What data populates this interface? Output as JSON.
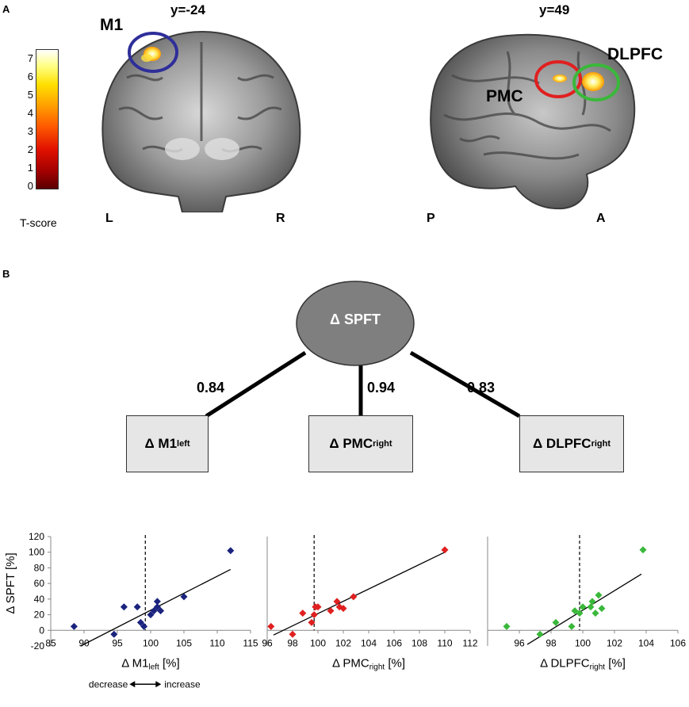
{
  "panel_a": {
    "letter": "A",
    "coronal": {
      "title": "y=-24",
      "left": "L",
      "right": "R",
      "roi": "M1",
      "roi_color": "#2e2e9a"
    },
    "sagittal": {
      "title": "y=49",
      "left": "P",
      "right": "A",
      "roi1": "PMC",
      "roi1_color": "#e02020",
      "roi2": "DLPFC",
      "roi2_color": "#3ab83a"
    },
    "colorbar": {
      "ticks": [
        "7",
        "6",
        "5",
        "4",
        "3",
        "2",
        "1",
        "0"
      ],
      "label": "T-score"
    }
  },
  "panel_b": {
    "letter": "B",
    "ellipse_label": "Δ SPFT",
    "boxes": [
      {
        "main": "Δ M1",
        "sub": "left"
      },
      {
        "main": "Δ PMC",
        "sub": "right"
      },
      {
        "main": "Δ DLPFC",
        "sub": "right"
      }
    ],
    "coefficients": [
      "0.84",
      "0.94",
      "0.83"
    ]
  },
  "chart_data": [
    {
      "type": "scatter",
      "ylabel": "Δ SPFT [%]",
      "xlabel_main": "Δ M1",
      "xlabel_sub": "left",
      "xlabel_unit": " [%]",
      "xlim": [
        85,
        115
      ],
      "ylim": [
        -20,
        120
      ],
      "xticks": [
        85,
        90,
        95,
        100,
        105,
        110,
        115
      ],
      "yticks": [
        -20,
        0,
        20,
        40,
        60,
        80,
        100,
        120
      ],
      "ref_x": 99.2,
      "color": "#1a237e",
      "points": [
        [
          88.5,
          5
        ],
        [
          94.5,
          -5
        ],
        [
          96,
          30
        ],
        [
          98,
          30
        ],
        [
          98.5,
          10
        ],
        [
          99,
          5
        ],
        [
          100,
          20
        ],
        [
          100.5,
          25
        ],
        [
          101,
          30
        ],
        [
          101,
          37
        ],
        [
          101.5,
          25
        ],
        [
          105,
          43
        ],
        [
          112,
          102
        ]
      ],
      "fit": [
        [
          89.5,
          -20
        ],
        [
          112,
          78
        ]
      ],
      "note_left": "decrease",
      "note_right": "increase"
    },
    {
      "type": "scatter",
      "ylabel": "",
      "xlabel_main": "Δ PMC",
      "xlabel_sub": "right",
      "xlabel_unit": " [%]",
      "xlim": [
        96,
        112
      ],
      "ylim": [
        -20,
        120
      ],
      "xticks": [
        96,
        98,
        100,
        102,
        104,
        106,
        108,
        110,
        112
      ],
      "yticks": [],
      "ref_x": 99.7,
      "color": "#e02020",
      "points": [
        [
          96.3,
          5
        ],
        [
          98,
          -5
        ],
        [
          98.8,
          22
        ],
        [
          99.5,
          10
        ],
        [
          99.7,
          20
        ],
        [
          99.8,
          30
        ],
        [
          100,
          30
        ],
        [
          101,
          25
        ],
        [
          101.5,
          37
        ],
        [
          101.7,
          30
        ],
        [
          102,
          28
        ],
        [
          102.8,
          43
        ],
        [
          110,
          103
        ]
      ],
      "fit": [
        [
          96.5,
          -6
        ],
        [
          110,
          100
        ]
      ]
    },
    {
      "type": "scatter",
      "ylabel": "",
      "xlabel_main": "Δ DLPFC",
      "xlabel_sub": "right",
      "xlabel_unit": " [%]",
      "xlim": [
        94,
        106
      ],
      "ylim": [
        -20,
        120
      ],
      "xticks": [
        96,
        98,
        100,
        102,
        104,
        106
      ],
      "yticks": [],
      "ref_x": 99.8,
      "color": "#3ab83a",
      "points": [
        [
          95.2,
          5
        ],
        [
          97.3,
          -5
        ],
        [
          98.3,
          10
        ],
        [
          99.3,
          5
        ],
        [
          99.5,
          25
        ],
        [
          99.8,
          22
        ],
        [
          100,
          30
        ],
        [
          100.5,
          30
        ],
        [
          100.6,
          37
        ],
        [
          100.8,
          22
        ],
        [
          101,
          45
        ],
        [
          101.2,
          28
        ],
        [
          103.8,
          103
        ]
      ],
      "fit": [
        [
          96.5,
          -18
        ],
        [
          103.7,
          72
        ]
      ]
    }
  ]
}
